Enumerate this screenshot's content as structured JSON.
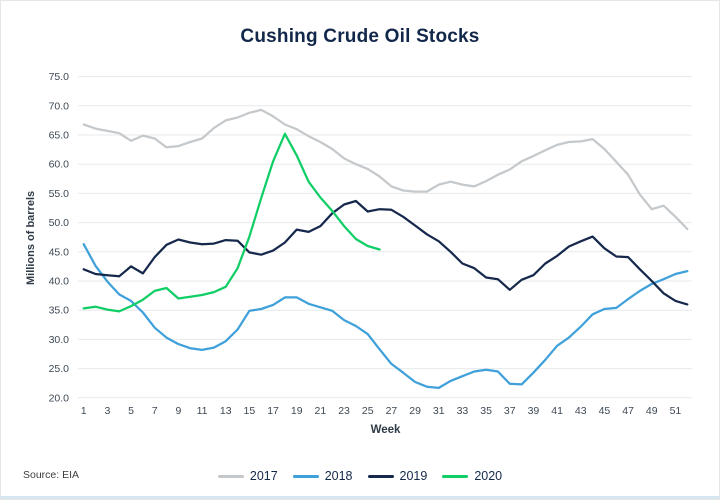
{
  "card": {
    "title": "Cushing Crude Oil Stocks",
    "source_label": "Source: EIA",
    "border_color": "#e6e6e6",
    "accent_bar_color": "#d6e6f1",
    "title_color": "#12284a",
    "grid_color": "#e7e9eb",
    "tick_label_color": "#3d4955"
  },
  "chart_data": {
    "type": "line",
    "title": "Cushing Crude Oil Stocks",
    "xlabel": "Week",
    "ylabel": "Millions of barrels",
    "x": [
      1,
      2,
      3,
      4,
      5,
      6,
      7,
      8,
      9,
      10,
      11,
      12,
      13,
      14,
      15,
      16,
      17,
      18,
      19,
      20,
      21,
      22,
      23,
      24,
      25,
      26,
      27,
      28,
      29,
      30,
      31,
      32,
      33,
      34,
      35,
      36,
      37,
      38,
      39,
      40,
      41,
      42,
      43,
      44,
      45,
      46,
      47,
      48,
      49,
      50,
      51,
      52
    ],
    "xticks": [
      1,
      3,
      5,
      7,
      9,
      11,
      13,
      15,
      17,
      19,
      21,
      23,
      25,
      27,
      29,
      31,
      33,
      35,
      37,
      39,
      41,
      43,
      45,
      47,
      49,
      51
    ],
    "yticks": [
      "75.0",
      "70.0",
      "65.0",
      "60.0",
      "55.0",
      "50.0",
      "45.0",
      "40.0",
      "35.0",
      "30.0",
      "25.0",
      "20.0"
    ],
    "ylim": [
      20,
      75
    ],
    "grid": "horizontal-only",
    "legend_position": "bottom-center",
    "series": [
      {
        "name": "2017",
        "color": "#c5c9cc",
        "values": [
          66.8,
          66.1,
          65.7,
          65.3,
          64.0,
          64.9,
          64.4,
          62.9,
          63.1,
          63.8,
          64.4,
          66.2,
          67.5,
          68.0,
          68.8,
          69.3,
          68.2,
          66.8,
          66.0,
          64.8,
          63.8,
          62.6,
          61.0,
          60.0,
          59.2,
          57.9,
          56.2,
          55.5,
          55.3,
          55.3,
          56.5,
          57.0,
          56.5,
          56.2,
          57.1,
          58.2,
          59.1,
          60.5,
          61.4,
          62.4,
          63.3,
          63.8,
          63.9,
          64.3,
          62.6,
          60.4,
          58.2,
          54.8,
          52.3,
          52.9,
          51.0,
          48.9
        ]
      },
      {
        "name": "2018",
        "color": "#3fa0da",
        "values": [
          46.3,
          42.6,
          39.9,
          37.7,
          36.6,
          34.6,
          32.0,
          30.3,
          29.2,
          28.5,
          28.2,
          28.6,
          29.7,
          31.7,
          34.9,
          35.2,
          35.9,
          37.2,
          37.2,
          36.1,
          35.5,
          34.9,
          33.3,
          32.3,
          30.9,
          28.3,
          25.8,
          24.3,
          22.7,
          21.9,
          21.7,
          22.9,
          23.7,
          24.5,
          24.8,
          24.5,
          22.4,
          22.3,
          24.3,
          26.5,
          28.9,
          30.3,
          32.2,
          34.3,
          35.2,
          35.4,
          36.9,
          38.3,
          39.5,
          40.3,
          41.2,
          41.7
        ]
      },
      {
        "name": "2019",
        "color": "#16294c",
        "values": [
          42.0,
          41.2,
          41.0,
          40.8,
          42.5,
          41.3,
          44.1,
          46.2,
          47.1,
          46.6,
          46.3,
          46.4,
          47.0,
          46.9,
          44.9,
          44.5,
          45.2,
          46.6,
          48.8,
          48.4,
          49.4,
          51.6,
          53.1,
          53.7,
          51.9,
          52.3,
          52.2,
          51.0,
          49.5,
          48.0,
          46.8,
          45.0,
          43.0,
          42.2,
          40.6,
          40.3,
          38.5,
          40.2,
          41.0,
          43.0,
          44.3,
          45.9,
          46.8,
          47.6,
          45.6,
          44.2,
          44.1,
          42.0,
          40.0,
          37.9,
          36.6,
          36.0
        ]
      },
      {
        "name": "2020",
        "color": "#10ce66",
        "values": [
          35.3,
          35.6,
          35.1,
          34.8,
          35.7,
          36.8,
          38.3,
          38.8,
          37.0,
          37.3,
          37.6,
          38.1,
          39.0,
          42.2,
          47.6,
          54.2,
          60.5,
          65.2,
          61.5,
          57.0,
          54.3,
          52.0,
          49.4,
          47.2,
          46.0,
          45.4
        ]
      }
    ],
    "source": "Source: EIA"
  }
}
